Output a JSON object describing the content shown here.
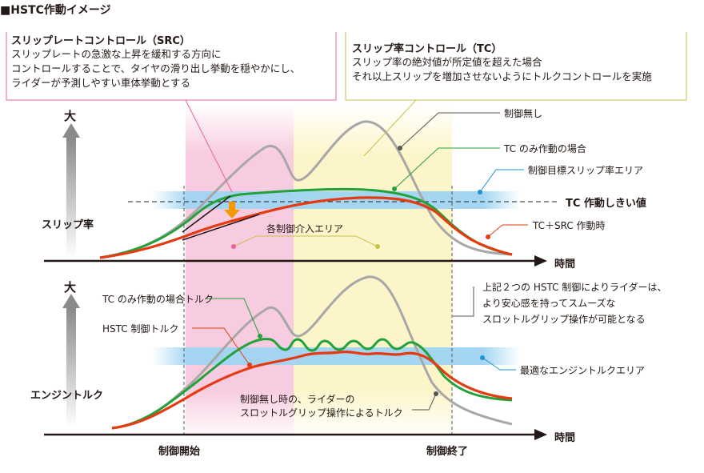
{
  "title": "■HSTC作動イメージ",
  "src_box": {
    "title": "スリップレートコントロール（SRC）",
    "lines": [
      "スリップレートの急激な上昇を緩和する方向に",
      "コントロールすることで、タイヤの滑り出し挙動を穏やかにし、",
      "ライダーが予測しやすい車体挙動とする"
    ],
    "color": "#e8639a"
  },
  "tc_box": {
    "title": "スリップ率コントロール（TC）",
    "lines": [
      "スリップ率の絶対値が所定値を超えた場合",
      "それ以上スリップを増加させないようにトルクコントロールを実施"
    ],
    "color": "#c9c24a"
  },
  "top_chart": {
    "y_big": "大",
    "y_label": "スリップ率",
    "x_label": "時間",
    "labels": {
      "no_control": "制御無し",
      "tc_only": "TC のみ作動の場合",
      "target_area": "制御目標スリップ率エリア",
      "tc_threshold": "TC 作動しきい値",
      "tc_src": "TC＋SRC 作動時",
      "intervention_area": "各制御介入エリア"
    }
  },
  "bottom_chart": {
    "y_big": "大",
    "y_label": "エンジントルク",
    "x_label": "時間",
    "labels": {
      "tc_only_torque": "TC のみ作動の場合トルク",
      "hstc_torque": "HSTC 制御トルク",
      "optimal_area": "最適なエンジントルクエリア",
      "no_control_line1": "制御無し時の、ライダーの",
      "no_control_line2": "スロットルグリップ操作によるトルク",
      "effect_line1": "上記２つの HSTC 制御によりライダーは、",
      "effect_line2": "より安心感を持ってスムーズな",
      "effect_line3": "スロットルグリップ操作が可能となる"
    }
  },
  "x_markers": {
    "start": "制御開始",
    "end": "制御終了"
  },
  "colors": {
    "gray_curve": "#a7a7a7",
    "green_curve": "#23a13a",
    "red_curve": "#e53b12",
    "blue_band": "#9fd4f3",
    "pink_zone": "#f9d0e2",
    "yellow_zone": "#fdf6cf"
  }
}
